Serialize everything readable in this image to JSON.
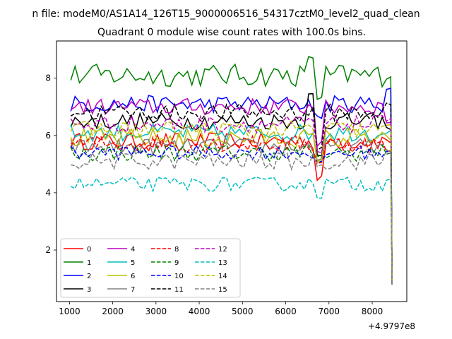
{
  "chart_data": {
    "type": "line",
    "suptitle": "n file: modeM0/AS1A14_126T15_9000006516_54317cztM0_level2_quad_clean",
    "title": "Quadrant 0 module wise count rates with 100.0s bins.",
    "xlabel": "",
    "ylabel": "",
    "x_offset_label": "+4.9797e8",
    "xlim": [
      700,
      8800
    ],
    "ylim": [
      0.2,
      9.3
    ],
    "xticks": [
      "1000",
      "2000",
      "3000",
      "4000",
      "5000",
      "6000",
      "7000",
      "8000"
    ],
    "xtick_values": [
      1000,
      2000,
      3000,
      4000,
      5000,
      6000,
      7000,
      8000
    ],
    "yticks": [
      "2",
      "4",
      "6",
      "8"
    ],
    "ytick_values": [
      2,
      4,
      6,
      8
    ],
    "grid": false,
    "legend": {
      "placement": "lower-left",
      "columns": 4
    },
    "x": [
      1030,
      1130,
      1230,
      1330,
      1430,
      1530,
      1630,
      1730,
      1830,
      1930,
      2030,
      2130,
      2230,
      2330,
      2430,
      2530,
      2630,
      2730,
      2830,
      2930,
      3030,
      3130,
      3230,
      3330,
      3430,
      3530,
      3630,
      3730,
      3830,
      3930,
      4030,
      4130,
      4230,
      4330,
      4430,
      4530,
      4630,
      4730,
      4830,
      4930,
      5030,
      5130,
      5230,
      5330,
      5430,
      5530,
      5630,
      5730,
      5830,
      5930,
      6030,
      6130,
      6230,
      6330,
      6430,
      6530,
      6630,
      6730,
      6830,
      6930,
      7030,
      7130,
      7230,
      7330,
      7430,
      7530,
      7630,
      7730,
      7830,
      7930,
      8030,
      8130,
      8230,
      8330,
      8430
    ],
    "series": [
      {
        "name": "0",
        "color": "#ff0000",
        "dash": "solid",
        "start": 5.8,
        "amp": 0.3,
        "dip": 4.4
      },
      {
        "name": "1",
        "color": "#008000",
        "dash": "solid",
        "start": 8.1,
        "amp": 0.4,
        "peak": 8.8,
        "dip": 7.2,
        "end": 8.0
      },
      {
        "name": "2",
        "color": "#0000ff",
        "dash": "solid",
        "start": 7.1,
        "amp": 0.3,
        "dip": 6.5,
        "end": 7.6
      },
      {
        "name": "3",
        "color": "#000000",
        "dash": "solid",
        "start": 6.5,
        "amp": 0.3,
        "peak": 7.6,
        "dip": 5.2,
        "end": 6.3
      },
      {
        "name": "4",
        "color": "#bf00bf",
        "dash": "solid",
        "start": 7.0,
        "amp": 0.3,
        "dip": 5.6,
        "end": 6.5
      },
      {
        "name": "5",
        "color": "#00bfbf",
        "dash": "solid",
        "start": 6.1,
        "amp": 0.3,
        "dip": 5.0,
        "end": 6.1
      },
      {
        "name": "6",
        "color": "#bfbf00",
        "dash": "solid",
        "start": 5.9,
        "amp": 0.35,
        "dip": 5.1,
        "end": 5.9
      },
      {
        "name": "7",
        "color": "#808080",
        "dash": "solid",
        "start": 5.6,
        "amp": 0.3,
        "dip": 5.0,
        "end": 5.5
      },
      {
        "name": "8",
        "color": "#ff0000",
        "dash": "dashed",
        "start": 5.7,
        "amp": 0.3,
        "dip": 5.0,
        "end": 5.5
      },
      {
        "name": "9",
        "color": "#008000",
        "dash": "dashed",
        "start": 5.4,
        "amp": 0.3,
        "dip": 5.1,
        "end": 5.4
      },
      {
        "name": "10",
        "color": "#0000ff",
        "dash": "dashed",
        "start": 5.4,
        "amp": 0.25,
        "dip": 4.9,
        "end": 5.5
      },
      {
        "name": "11",
        "color": "#000000",
        "dash": "dashed",
        "start": 6.8,
        "amp": 0.3,
        "dip": 5.4,
        "end": 7.1
      },
      {
        "name": "12",
        "color": "#bf00bf",
        "dash": "dashed",
        "start": 6.4,
        "amp": 0.3,
        "dip": 5.3,
        "end": 6.6
      },
      {
        "name": "13",
        "color": "#00bfbf",
        "dash": "dashed",
        "start": 4.3,
        "amp": 0.25,
        "dip": 3.8,
        "end": 4.5
      },
      {
        "name": "14",
        "color": "#bfbf00",
        "dash": "dashed",
        "start": 6.2,
        "amp": 0.3,
        "dip": 5.0,
        "end": 6.3
      },
      {
        "name": "15",
        "color": "#808080",
        "dash": "dashed",
        "start": 5.1,
        "amp": 0.3,
        "dip": 4.9,
        "end": 5.5
      }
    ],
    "final_x": 8460,
    "final_y": 0.8
  }
}
